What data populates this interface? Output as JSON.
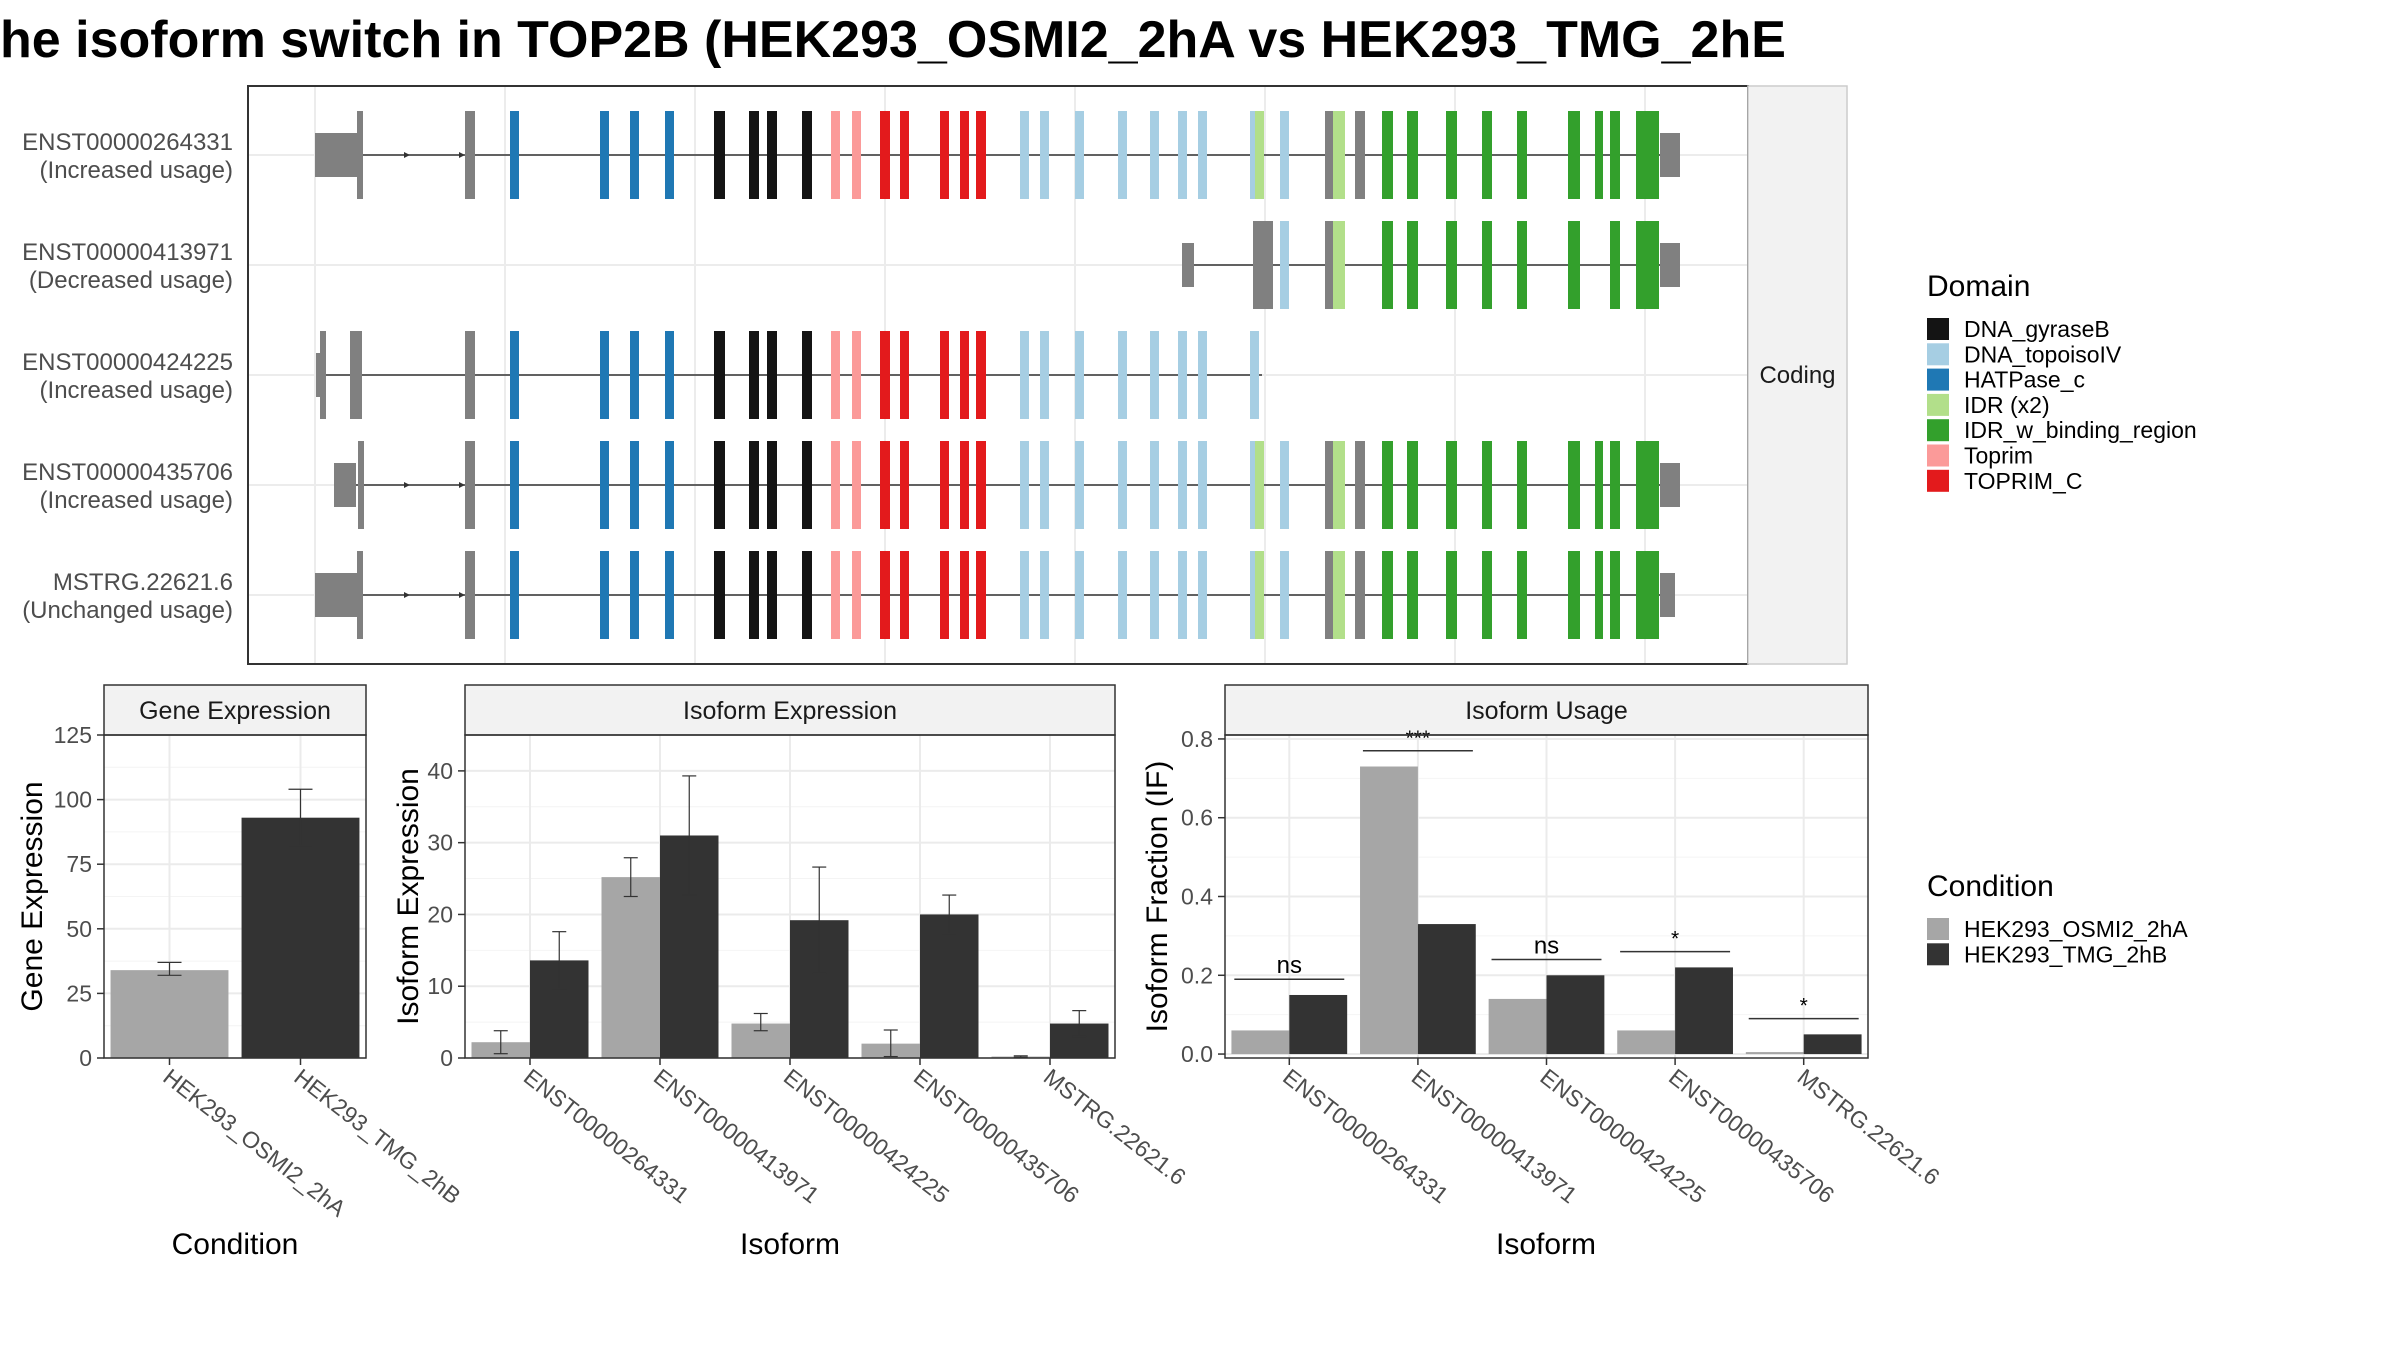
{
  "title": "he isoform switch in TOP2B (HEK293_OSMI2_2hA vs HEK293_TMG_2hE",
  "colors": {
    "DNA_gyraseB": "#141414",
    "DNA_topoisoIV": "#a6cee3",
    "HATPase_c": "#1f78b4",
    "IDR (x2)": "#b2df8a",
    "IDR_w_binding_region": "#33a02c",
    "Toprim": "#fb9a99",
    "TOPRIM_C": "#e31a1c",
    "noncoding": "#808080",
    "cond1": "#a6a6a6",
    "cond2": "#333333"
  },
  "structure": {
    "facet_label": "Coding",
    "isoforms": [
      {
        "name": "ENST00000264331",
        "usage": "(Increased usage)"
      },
      {
        "name": "ENST00000413971",
        "usage": "(Decreased usage)"
      },
      {
        "name": "ENST00000424225",
        "usage": "(Increased usage)"
      },
      {
        "name": "ENST00000435706",
        "usage": "(Increased usage)"
      },
      {
        "name": "MSTRG.22621.6",
        "usage": "(Unchanged usage)"
      }
    ]
  },
  "legend_domain": {
    "title": "Domain",
    "items": [
      "DNA_gyraseB",
      "DNA_topoisoIV",
      "HATPase_c",
      "IDR (x2)",
      "IDR_w_binding_region",
      "Toprim",
      "TOPRIM_C"
    ]
  },
  "legend_condition": {
    "title": "Condition",
    "items": [
      "HEK293_OSMI2_2hA",
      "HEK293_TMG_2hB"
    ]
  },
  "chart_data": [
    {
      "type": "bar",
      "title": "Gene Expression",
      "xlabel": "Condition",
      "ylabel": "Gene Expression",
      "ylim": [
        0,
        125
      ],
      "yticks": [
        0,
        25,
        50,
        75,
        100,
        125
      ],
      "categories": [
        "HEK293_OSMI2_2hA",
        "HEK293_TMG_2hB"
      ],
      "values": [
        34,
        93
      ],
      "errors": [
        [
          32,
          37
        ],
        [
          82,
          104
        ]
      ]
    },
    {
      "type": "bar",
      "title": "Isoform Expression",
      "xlabel": "Isoform",
      "ylabel": "Isoform Expression",
      "ylim": [
        0,
        45
      ],
      "yticks": [
        0,
        10,
        20,
        30,
        40
      ],
      "categories": [
        "ENST00000264331",
        "ENST00000413971",
        "ENST00000424225",
        "ENST00000435706",
        "MSTRG.22621.6"
      ],
      "series": [
        {
          "name": "HEK293_OSMI2_2hA",
          "values": [
            2.2,
            25.2,
            4.8,
            2.0,
            0.2
          ],
          "errors": [
            [
              0.6,
              3.8
            ],
            [
              22.5,
              27.9
            ],
            [
              3.8,
              6.2
            ],
            [
              0.2,
              3.9
            ],
            [
              0.1,
              0.3
            ]
          ]
        },
        {
          "name": "HEK293_TMG_2hB",
          "values": [
            13.6,
            31.0,
            19.2,
            20.0,
            4.8
          ],
          "errors": [
            [
              9.6,
              17.6
            ],
            [
              22.7,
              39.3
            ],
            [
              11.8,
              26.6
            ],
            [
              17.3,
              22.7
            ],
            [
              3.0,
              6.6
            ]
          ]
        }
      ]
    },
    {
      "type": "bar",
      "title": "Isoform Usage",
      "xlabel": "Isoform",
      "ylabel": "Isoform Fraction (IF)",
      "ylim": [
        -0.01,
        0.81
      ],
      "yticks": [
        0.0,
        0.2,
        0.4,
        0.6,
        0.8
      ],
      "categories": [
        "ENST00000264331",
        "ENST00000413971",
        "ENST00000424225",
        "ENST00000435706",
        "MSTRG.22621.6"
      ],
      "series": [
        {
          "name": "HEK293_OSMI2_2hA",
          "values": [
            0.06,
            0.73,
            0.14,
            0.06,
            0.005
          ]
        },
        {
          "name": "HEK293_TMG_2hB",
          "values": [
            0.15,
            0.33,
            0.2,
            0.22,
            0.05
          ]
        }
      ],
      "significance": [
        "ns",
        "***",
        "ns",
        "*",
        "*"
      ],
      "sig_y": [
        0.19,
        0.77,
        0.24,
        0.26,
        0.09
      ]
    }
  ]
}
